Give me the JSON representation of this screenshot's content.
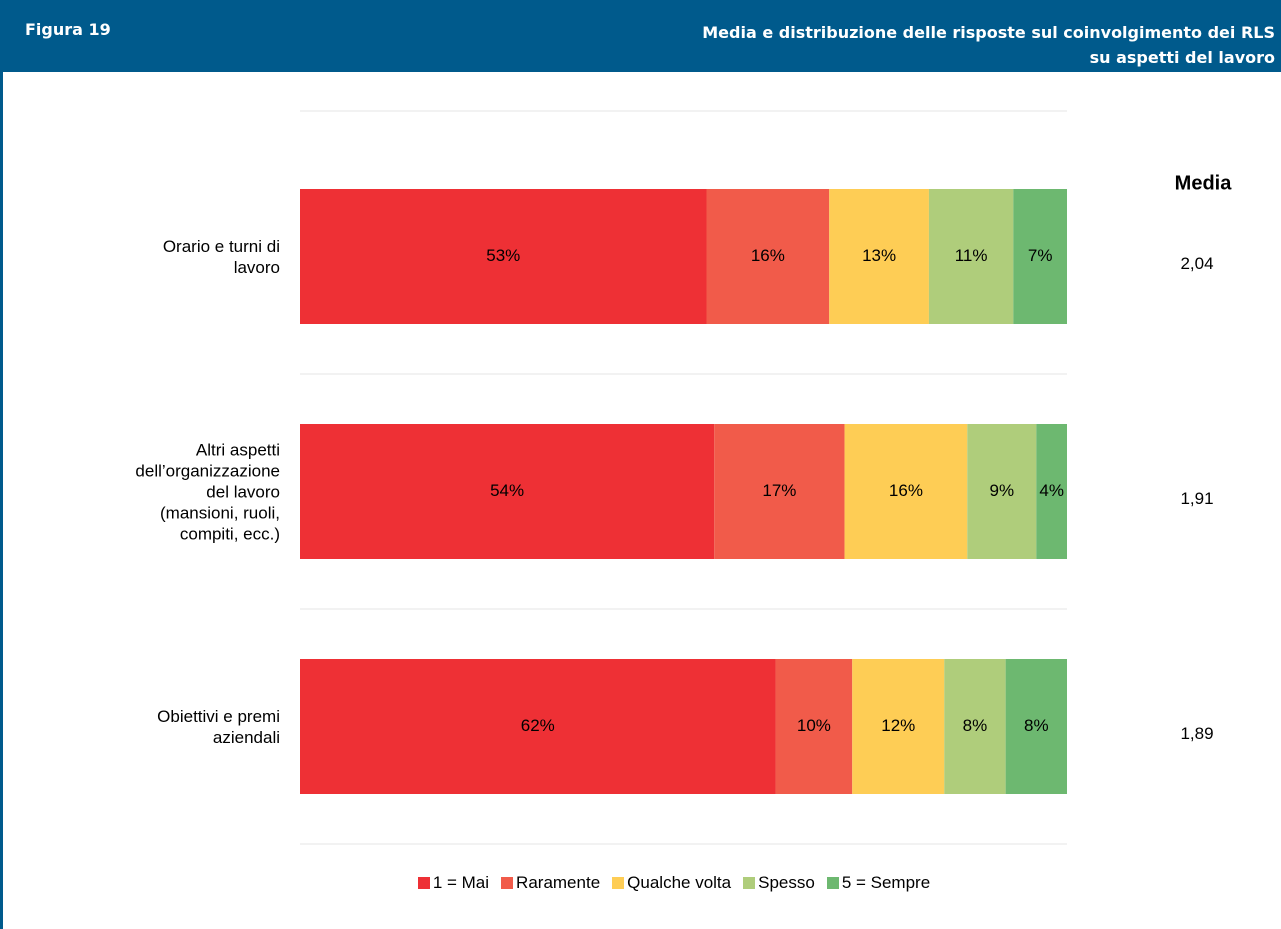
{
  "header": {
    "figure": "Figura 19",
    "title": "Media e distribuzione delle risposte sul coinvolgimento dei RLS\nsu aspetti del lavoro"
  },
  "chart_data": {
    "type": "stacked-bar-horizontal",
    "categories": [
      "Orario e turni di\nlavoro",
      "Altri aspetti\ndell’organizzazione\ndel lavoro \n(mansioni, ruoli,\ncompiti, ecc.)",
      "Obiettivi e premi\naziendali"
    ],
    "xlim": [
      0,
      100
    ],
    "series": [
      {
        "name": "1 = Mai",
        "color": "#ee3035",
        "values": [
          53,
          54,
          62
        ],
        "value_labels": [
          "53%",
          "54%",
          "62%"
        ]
      },
      {
        "name": "Raramente",
        "color": "#f15b4a",
        "values": [
          16,
          17,
          10
        ],
        "value_labels": [
          "16%",
          "17%",
          "10%"
        ]
      },
      {
        "name": "Qualche volta",
        "color": "#fecd55",
        "values": [
          13,
          16,
          12
        ],
        "value_labels": [
          "13%",
          "16%",
          "12%"
        ]
      },
      {
        "name": "Spesso",
        "color": "#afcd7b",
        "values": [
          11,
          9,
          8
        ],
        "value_labels": [
          "11%",
          "9%",
          "8%"
        ]
      },
      {
        "name": "5 = Sempre",
        "color": "#6db870",
        "values": [
          7,
          4,
          8
        ],
        "value_labels": [
          "7%",
          "4%",
          "8%"
        ]
      }
    ],
    "media_title": "Media",
    "media": [
      2.04,
      1.91,
      1.89
    ],
    "media_labels": [
      "2,04",
      "1,91",
      "1,89"
    ]
  }
}
